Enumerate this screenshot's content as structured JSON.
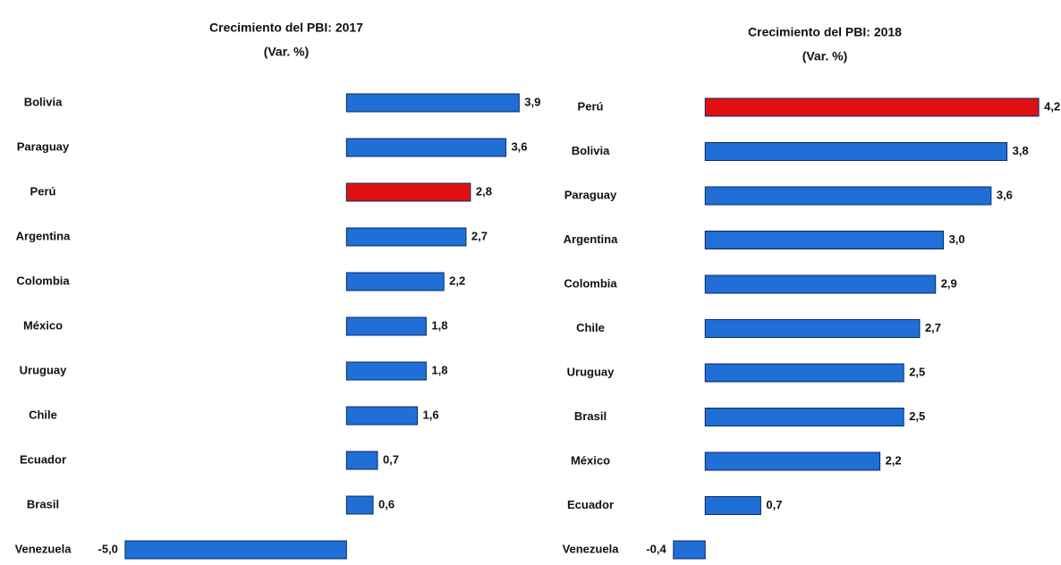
{
  "chart_data": [
    {
      "type": "bar",
      "orientation": "horizontal",
      "title": "Crecimiento del PBI: 2017",
      "subtitle": "(Var. %)",
      "categories": [
        "Bolivia",
        "Paraguay",
        "Perú",
        "Argentina",
        "Colombia",
        "México",
        "Uruguay",
        "Chile",
        "Ecuador",
        "Brasil",
        "Venezuela"
      ],
      "values": [
        3.9,
        3.6,
        2.8,
        2.7,
        2.2,
        1.8,
        1.8,
        1.6,
        0.7,
        0.6,
        -5.0
      ],
      "value_labels": [
        "3,9",
        "3,6",
        "2,8",
        "2,7",
        "2,2",
        "1,8",
        "1,8",
        "1,6",
        "0,7",
        "0,6",
        "-5,0"
      ],
      "colors": [
        "#1f6fd6",
        "#1f6fd6",
        "#e01010",
        "#1f6fd6",
        "#1f6fd6",
        "#1f6fd6",
        "#1f6fd6",
        "#1f6fd6",
        "#1f6fd6",
        "#1f6fd6",
        "#1f6fd6"
      ],
      "xlim": [
        -5.2,
        4.5
      ]
    },
    {
      "type": "bar",
      "orientation": "horizontal",
      "title": "Crecimiento del PBI: 2018",
      "subtitle": "(Var. %)",
      "categories": [
        "Perú",
        "Bolivia",
        "Paraguay",
        "Argentina",
        "Colombia",
        "Chile",
        "Uruguay",
        "Brasil",
        "México",
        "Ecuador",
        "Venezuela"
      ],
      "values": [
        4.2,
        3.8,
        3.6,
        3.0,
        2.9,
        2.7,
        2.5,
        2.5,
        2.2,
        0.7,
        -0.4
      ],
      "value_labels": [
        "4,2",
        "3,8",
        "3,6",
        "3,0",
        "2,9",
        "2,7",
        "2,5",
        "2,5",
        "2,2",
        "0,7",
        "-0,4"
      ],
      "colors": [
        "#e01010",
        "#1f6fd6",
        "#1f6fd6",
        "#1f6fd6",
        "#1f6fd6",
        "#1f6fd6",
        "#1f6fd6",
        "#1f6fd6",
        "#1f6fd6",
        "#1f6fd6",
        "#1f6fd6"
      ],
      "xlim": [
        -0.6,
        4.3
      ]
    }
  ]
}
